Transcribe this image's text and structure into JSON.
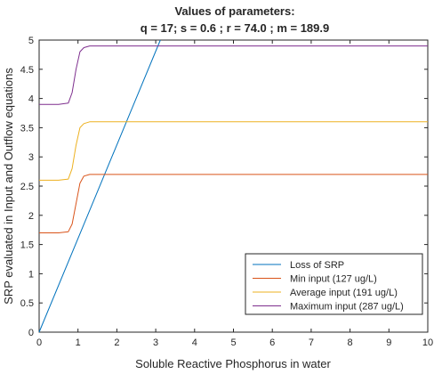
{
  "chart_data": {
    "type": "line",
    "title": "Values of parameters:",
    "subtitle": "q = 17; s = 0.6 ; r = 74.0 ; m = 189.9",
    "xlabel": "Soluble Reactive Phosphorus in water",
    "ylabel": "SRP evaluated in Input and Outflow equations",
    "xlim": [
      0,
      10
    ],
    "ylim": [
      0,
      5
    ],
    "xticks": [
      "0",
      "1",
      "2",
      "3",
      "4",
      "5",
      "6",
      "7",
      "8",
      "9",
      "10"
    ],
    "yticks": [
      "0",
      "0.5",
      "1",
      "1.5",
      "2",
      "2.5",
      "3",
      "3.5",
      "4",
      "4.5",
      "5"
    ],
    "grid": false,
    "legend_position": "bottom-right",
    "series": [
      {
        "name": "Loss of SRP",
        "color": "#0072BD",
        "x": [
          0,
          3.12
        ],
        "y": [
          0,
          5.0
        ]
      },
      {
        "name": "Min input (127 ug/L)",
        "color": "#D95319",
        "x": [
          0,
          0.5,
          0.75,
          0.85,
          0.95,
          1.05,
          1.15,
          1.3,
          1.6,
          10
        ],
        "y": [
          1.7,
          1.7,
          1.72,
          1.85,
          2.2,
          2.55,
          2.67,
          2.7,
          2.7,
          2.7
        ]
      },
      {
        "name": "Average input (191 ug/L)",
        "color": "#EDB120",
        "x": [
          0,
          0.5,
          0.75,
          0.85,
          0.95,
          1.05,
          1.15,
          1.3,
          1.6,
          10
        ],
        "y": [
          2.6,
          2.6,
          2.62,
          2.8,
          3.2,
          3.5,
          3.57,
          3.6,
          3.6,
          3.6
        ]
      },
      {
        "name": "Maximum input (287 ug/L)",
        "color": "#7E2F8E",
        "x": [
          0,
          0.5,
          0.75,
          0.85,
          0.95,
          1.05,
          1.15,
          1.3,
          1.6,
          10
        ],
        "y": [
          3.9,
          3.9,
          3.92,
          4.1,
          4.5,
          4.8,
          4.87,
          4.9,
          4.9,
          4.9
        ]
      }
    ]
  }
}
